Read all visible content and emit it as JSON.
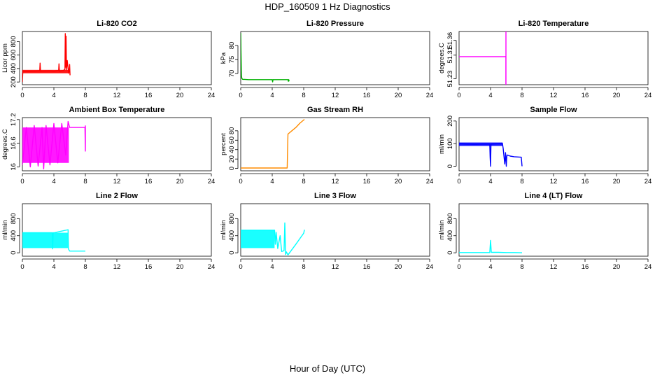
{
  "figure": {
    "title": "HDP_160509  1 Hz Diagnostics",
    "xlabel": "Hour of Day (UTC)"
  },
  "chart_data": [
    {
      "type": "line",
      "title": "Li-820 CO2",
      "ylabel": "Licor ppm",
      "color": "#ff0000",
      "xlim": [
        0,
        24
      ],
      "xticks": [
        0,
        4,
        8,
        12,
        16,
        20,
        24
      ],
      "ylim": [
        160,
        950
      ],
      "yticks": [
        200,
        400,
        600,
        800
      ],
      "series": [
        {
          "name": "band",
          "kind": "band",
          "x": [
            0,
            5.9
          ],
          "low": 330,
          "high": 380
        },
        {
          "name": "line",
          "kind": "line",
          "x": [
            0,
            0.05,
            0.1,
            0.3,
            1.5,
            2.2,
            2.25,
            2.3,
            3.5,
            4.0,
            4.6,
            4.65,
            4.7,
            5.2,
            5.4,
            5.45,
            5.5,
            5.55,
            5.6,
            5.7,
            5.8,
            5.9,
            6.0,
            6.05
          ],
          "y": [
            200,
            360,
            360,
            355,
            360,
            365,
            480,
            360,
            365,
            360,
            370,
            470,
            360,
            370,
            390,
            920,
            420,
            880,
            380,
            520,
            400,
            330,
            460,
            300
          ]
        }
      ]
    },
    {
      "type": "line",
      "title": "Li-820 Pressure",
      "ylabel": "kPa",
      "color": "#00b000",
      "xlim": [
        0,
        24
      ],
      "xticks": [
        0,
        4,
        8,
        12,
        16,
        20,
        24
      ],
      "ylim": [
        66,
        85
      ],
      "yticks": [
        70,
        75,
        80
      ],
      "series": [
        {
          "name": "line",
          "kind": "line",
          "x": [
            0,
            0.02,
            0.04,
            0.06,
            0.08,
            0.1,
            0.15,
            0.25,
            0.5,
            1,
            2,
            3,
            4,
            4.05,
            4.1,
            5,
            6,
            6.05,
            6.1,
            6.15
          ],
          "y": [
            84.5,
            82,
            78,
            74,
            71,
            69,
            68.2,
            67.9,
            67.9,
            67.8,
            67.8,
            67.8,
            67.8,
            67,
            67.8,
            67.8,
            67.8,
            67.2,
            67.8,
            67.2
          ]
        }
      ]
    },
    {
      "type": "line",
      "title": "Li-820 Temperature",
      "ylabel": "degrees.C",
      "color": "#ff00ff",
      "xlim": [
        0,
        24
      ],
      "xticks": [
        0,
        4,
        8,
        12,
        16,
        20,
        24
      ],
      "ylim": [
        51.21,
        51.39
      ],
      "yticks": [
        51.23,
        51.31,
        51.36
      ],
      "series": [
        {
          "name": "line",
          "kind": "line",
          "x": [
            0,
            5.95,
            5.95,
            5.96,
            5.96
          ],
          "y": [
            51.305,
            51.305,
            51.21,
            51.21,
            51.39
          ]
        }
      ]
    },
    {
      "type": "line",
      "title": "Ambient Box Temperature",
      "ylabel": "degrees.C",
      "color": "#ff00ff",
      "xlim": [
        0,
        24
      ],
      "xticks": [
        0,
        4,
        8,
        12,
        16,
        20,
        24
      ],
      "ylim": [
        15.9,
        17.25
      ],
      "yticks": [
        16.0,
        16.6,
        17.2
      ],
      "series": [
        {
          "name": "band",
          "kind": "band",
          "x": [
            0,
            5.9
          ],
          "low": 16.1,
          "high": 17.0
        },
        {
          "name": "line",
          "kind": "line",
          "x": [
            0,
            0.5,
            1.0,
            1.5,
            2.0,
            2.5,
            2.7,
            3.0,
            3.5,
            4.0,
            4.5,
            5.0,
            5.5,
            5.8,
            6.0,
            7.95,
            8.0,
            8.0
          ],
          "y": [
            16.05,
            17.0,
            16.0,
            17.05,
            16.02,
            17.0,
            15.95,
            17.05,
            16.05,
            17.1,
            16.1,
            17.1,
            16.3,
            17.15,
            17.0,
            17.0,
            16.4,
            17.05
          ]
        }
      ]
    },
    {
      "type": "line",
      "title": "Gas Stream RH",
      "ylabel": "percent",
      "color": "#ff8c00",
      "xlim": [
        0,
        24
      ],
      "xticks": [
        0,
        4,
        8,
        12,
        16,
        20,
        24
      ],
      "ylim": [
        -5,
        108
      ],
      "yticks": [
        0,
        20,
        40,
        60,
        80
      ],
      "series": [
        {
          "name": "line",
          "kind": "line",
          "x": [
            0,
            1,
            2,
            3,
            4,
            5,
            5.9,
            5.95,
            6.0,
            6.5,
            7.0,
            7.5,
            8.0,
            8.1
          ],
          "y": [
            1,
            1,
            1,
            1,
            1,
            1,
            1,
            35,
            73,
            80,
            87,
            96,
            103,
            104
          ]
        }
      ]
    },
    {
      "type": "line",
      "title": "Sample Flow",
      "ylabel": "ml/min",
      "color": "#0000ff",
      "xlim": [
        0,
        24
      ],
      "xticks": [
        0,
        4,
        8,
        12,
        16,
        20,
        24
      ],
      "ylim": [
        -20,
        215
      ],
      "yticks": [
        0,
        100,
        200
      ],
      "series": [
        {
          "name": "band",
          "kind": "band",
          "x": [
            0,
            5.5
          ],
          "low": 90,
          "high": 105
        },
        {
          "name": "line",
          "kind": "line",
          "x": [
            0,
            1,
            2,
            3,
            3.9,
            3.95,
            4.0,
            4.05,
            4.1,
            5.0,
            5.5,
            5.6,
            5.8,
            5.9,
            6.0,
            6.05,
            6.1,
            6.5,
            7.0,
            7.9,
            8.0
          ],
          "y": [
            100,
            98,
            97,
            98,
            98,
            40,
            0,
            95,
            98,
            100,
            102,
            80,
            10,
            60,
            0,
            40,
            50,
            45,
            42,
            40,
            0
          ]
        }
      ]
    },
    {
      "type": "line",
      "title": "Line 2 Flow",
      "ylabel": "ml/min",
      "color": "#00ffff",
      "xlim": [
        0,
        24
      ],
      "xticks": [
        0,
        4,
        8,
        12,
        16,
        20,
        24
      ],
      "ylim": [
        -80,
        1150
      ],
      "yticks": [
        0,
        400,
        800
      ],
      "series": [
        {
          "name": "band",
          "kind": "band",
          "x": [
            0,
            5.8
          ],
          "low": 110,
          "high": 470
        },
        {
          "name": "line",
          "kind": "line",
          "x": [
            0,
            3.8,
            3.85,
            3.9,
            4.0,
            5.8,
            5.85,
            6.0,
            6.1,
            7.0,
            8.0
          ],
          "y": [
            470,
            470,
            90,
            470,
            470,
            540,
            90,
            40,
            40,
            40,
            40
          ]
        }
      ]
    },
    {
      "type": "line",
      "title": "Line 3 Flow",
      "ylabel": "ml/min",
      "color": "#00ffff",
      "xlim": [
        0,
        24
      ],
      "xticks": [
        0,
        4,
        8,
        12,
        16,
        20,
        24
      ],
      "ylim": [
        -80,
        1150
      ],
      "yticks": [
        0,
        400,
        800
      ],
      "series": [
        {
          "name": "band",
          "kind": "band",
          "x": [
            0,
            4.3
          ],
          "low": 110,
          "high": 530
        },
        {
          "name": "line",
          "kind": "line",
          "x": [
            0,
            4.3,
            4.4,
            4.5,
            4.7,
            5.0,
            5.2,
            5.5,
            5.6,
            5.7,
            5.8,
            6.0,
            7.0,
            8.0,
            8.1
          ],
          "y": [
            530,
            530,
            200,
            480,
            100,
            400,
            30,
            50,
            700,
            -40,
            20,
            -50,
            200,
            460,
            540
          ]
        }
      ]
    },
    {
      "type": "line",
      "title": "Line 4 (LT) Flow",
      "ylabel": "ml/min",
      "color": "#00ffff",
      "xlim": [
        0,
        24
      ],
      "xticks": [
        0,
        4,
        8,
        12,
        16,
        20,
        24
      ],
      "ylim": [
        -80,
        1150
      ],
      "yticks": [
        0,
        400,
        800
      ],
      "series": [
        {
          "name": "line",
          "kind": "line",
          "x": [
            0,
            2,
            3.9,
            4.0,
            4.1,
            5,
            6,
            7,
            8
          ],
          "y": [
            5,
            5,
            5,
            290,
            10,
            10,
            5,
            5,
            0
          ]
        }
      ]
    }
  ]
}
